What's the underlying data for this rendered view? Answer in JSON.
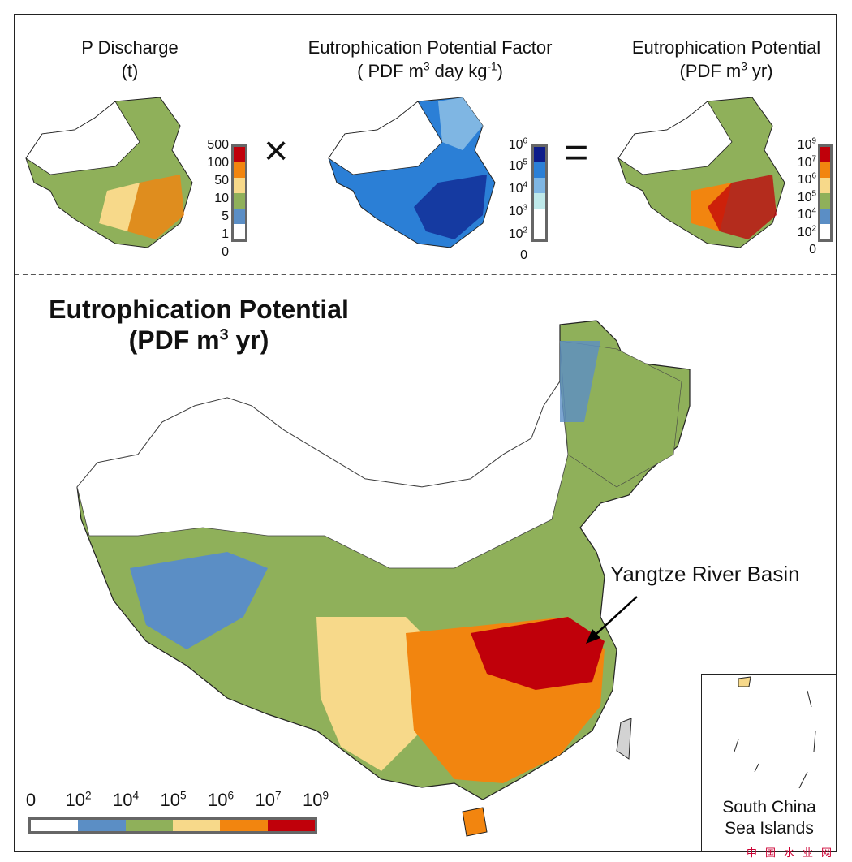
{
  "panels": {
    "discharge": {
      "title1": "P Discharge",
      "title2": "(t)",
      "legend": [
        "500",
        "100",
        "50",
        "10",
        "5",
        "1",
        "0"
      ]
    },
    "factor": {
      "title1": "Eutrophication Potential Factor",
      "title2a": "( PDF m",
      "title2sup1": "3",
      "title2b": " day kg",
      "title2sup2": "-1",
      "title2c": ")",
      "legend": [
        {
          "base": "10",
          "exp": "6"
        },
        {
          "base": "10",
          "exp": "5"
        },
        {
          "base": "10",
          "exp": "4"
        },
        {
          "base": "10",
          "exp": "3"
        },
        {
          "base": "10",
          "exp": "2"
        },
        {
          "base": "0",
          "exp": ""
        }
      ]
    },
    "potential": {
      "title1": "Eutrophication Potential",
      "title2a": "(PDF m",
      "title2sup": "3",
      "title2b": " yr)",
      "legend": [
        {
          "base": "10",
          "exp": "9"
        },
        {
          "base": "10",
          "exp": "7"
        },
        {
          "base": "10",
          "exp": "6"
        },
        {
          "base": "10",
          "exp": "5"
        },
        {
          "base": "10",
          "exp": "4"
        },
        {
          "base": "10",
          "exp": "2"
        },
        {
          "base": "0",
          "exp": ""
        }
      ]
    },
    "times": "×",
    "equals": "="
  },
  "main": {
    "title1": "Eutrophication Potential",
    "title2a": "(PDF m",
    "title2sup": "3",
    "title2b": " yr)",
    "annotation": "Yangtze River Basin",
    "inset_label1": "South China",
    "inset_label2": "Sea Islands",
    "watermark": "中国水业网",
    "legend_labels": [
      {
        "base": "0",
        "exp": ""
      },
      {
        "base": "10",
        "exp": "2"
      },
      {
        "base": "10",
        "exp": "4"
      },
      {
        "base": "10",
        "exp": "5"
      },
      {
        "base": "10",
        "exp": "6"
      },
      {
        "base": "10",
        "exp": "7"
      },
      {
        "base": "10",
        "exp": "9"
      }
    ]
  },
  "colors": {
    "potential_scale": [
      "#ffffff",
      "#5b8ec5",
      "#8fb05a",
      "#f7d98a",
      "#f2850f",
      "#c0000a"
    ],
    "discharge_scale": [
      "#ffffff",
      "#5b8ec5",
      "#8fb05a",
      "#f7d98a",
      "#f2850f",
      "#c0000a"
    ],
    "factor_scale": [
      "#ffffff",
      "#bfe9ea",
      "#7fb6e3",
      "#2b7fd6",
      "#0d1c8a"
    ]
  }
}
